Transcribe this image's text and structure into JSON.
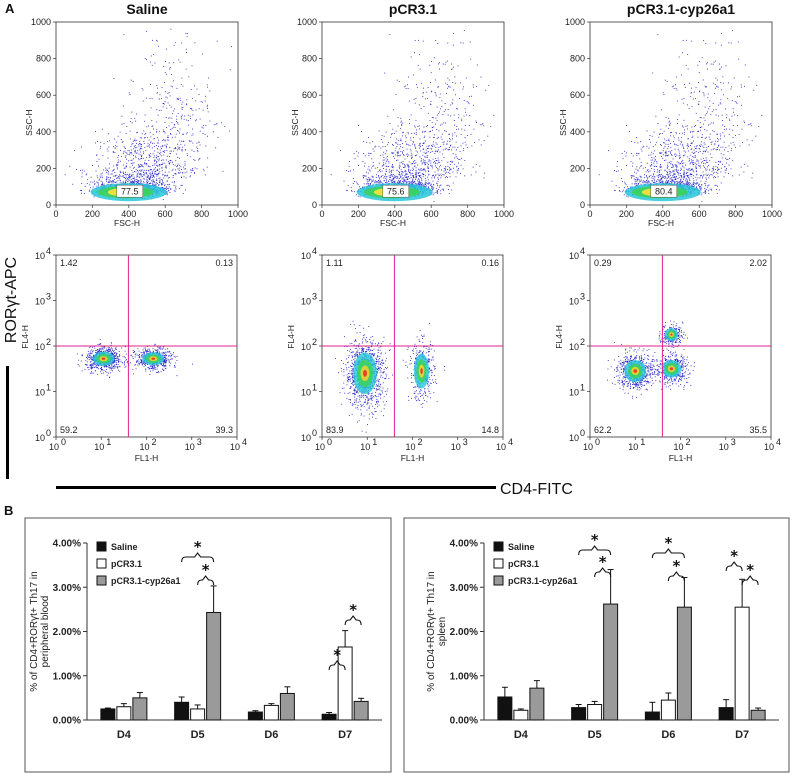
{
  "colors": {
    "dot": "#2323c8",
    "quad": "#e0208c",
    "saline": "#111111",
    "pcr": "#ffffff",
    "cyp": "#9a9a9a"
  },
  "panel_a_label": "A",
  "panel_b_label": "B",
  "scatter_titles": [
    "Saline",
    "pCR3.1",
    "pCR3.1-cyp26a1"
  ],
  "fsc_axes": {
    "xlabel": "FSC-H",
    "ylabel": "SSC-H",
    "xticks": [
      "0",
      "200",
      "400",
      "600",
      "800",
      "1000"
    ],
    "yticks": [
      "0",
      "200",
      "400",
      "600",
      "800",
      "1000"
    ]
  },
  "fl_axes": {
    "xlabel": "FL1-H",
    "ylabel": "FL4-H",
    "xticks": [
      "10",
      "10",
      "10",
      "10",
      "10"
    ],
    "xexp": [
      "0",
      "1",
      "2",
      "3",
      "4"
    ],
    "yticks": [
      "10",
      "10",
      "10",
      "10",
      "10"
    ],
    "yexp": [
      "0",
      "1",
      "2",
      "3",
      "4"
    ]
  },
  "rory_label": "RORγt-APC",
  "cd4_label": "CD4-FITC",
  "chart_data": [
    {
      "type": "scatter",
      "title": "Saline",
      "xlabel": "FSC-H",
      "ylabel": "SSC-H",
      "xlim": [
        0,
        1000
      ],
      "ylim": [
        0,
        1000
      ],
      "gate_value": "77.5"
    },
    {
      "type": "scatter",
      "title": "pCR3.1",
      "xlabel": "FSC-H",
      "ylabel": "SSC-H",
      "xlim": [
        0,
        1000
      ],
      "ylim": [
        0,
        1000
      ],
      "gate_value": "75.6"
    },
    {
      "type": "scatter",
      "title": "pCR3.1-cyp26a1",
      "xlabel": "FSC-H",
      "ylabel": "SSC-H",
      "xlim": [
        0,
        1000
      ],
      "ylim": [
        0,
        1000
      ],
      "gate_value": "80.4"
    },
    {
      "type": "scatter",
      "xlabel": "FL1-H",
      "ylabel": "FL4-H",
      "scale": "log",
      "quadrants": {
        "ul": "1.42",
        "ur": "0.13",
        "ll": "59.2",
        "lr": "39.3"
      }
    },
    {
      "type": "scatter",
      "xlabel": "FL1-H",
      "ylabel": "FL4-H",
      "scale": "log",
      "quadrants": {
        "ul": "1.11",
        "ur": "0.16",
        "ll": "83.9",
        "lr": "14.8"
      }
    },
    {
      "type": "scatter",
      "xlabel": "FL1-H",
      "ylabel": "FL4-H",
      "scale": "log",
      "quadrants": {
        "ul": "0.29",
        "ur": "2.02",
        "ll": "62.2",
        "lr": "35.5"
      }
    },
    {
      "type": "bar",
      "ylabel": "% of CD4+RORγt+ Th17 in peripheral blood",
      "ylim": [
        0,
        0.04
      ],
      "yticks": [
        "0.00%",
        "1.00%",
        "2.00%",
        "3.00%",
        "4.00%"
      ],
      "categories": [
        "D4",
        "D5",
        "D6",
        "D7"
      ],
      "series": [
        {
          "name": "Saline",
          "values": [
            0.0025,
            0.004,
            0.0018,
            0.0013
          ],
          "errors": [
            0.0002,
            0.0012,
            0.0003,
            0.0004
          ]
        },
        {
          "name": "pCR3.1",
          "values": [
            0.003,
            0.0025,
            0.0033,
            0.0165
          ],
          "errors": [
            0.0007,
            0.0009,
            0.0004,
            0.0037
          ]
        },
        {
          "name": "pCR3.1-cyp26a1",
          "values": [
            0.005,
            0.0243,
            0.006,
            0.0042
          ],
          "errors": [
            0.0012,
            0.006,
            0.0015,
            0.0007
          ]
        }
      ],
      "significance": [
        "*",
        "*",
        "*",
        "*"
      ]
    },
    {
      "type": "bar",
      "ylabel": "% of CD4+RORγt+ Th17 in spleen",
      "ylim": [
        0,
        0.04
      ],
      "yticks": [
        "0.00%",
        "1.00%",
        "2.00%",
        "3.00%",
        "4.00%"
      ],
      "categories": [
        "D4",
        "D5",
        "D6",
        "D7"
      ],
      "series": [
        {
          "name": "Saline",
          "values": [
            0.0052,
            0.0028,
            0.0018,
            0.0028
          ],
          "errors": [
            0.0022,
            0.0007,
            0.0022,
            0.0018
          ]
        },
        {
          "name": "pCR3.1",
          "values": [
            0.0022,
            0.0035,
            0.0045,
            0.0255
          ],
          "errors": [
            0.0003,
            0.0007,
            0.0016,
            0.0063
          ]
        },
        {
          "name": "pCR3.1-cyp26a1",
          "values": [
            0.0072,
            0.0262,
            0.0255,
            0.0022
          ],
          "errors": [
            0.0017,
            0.0078,
            0.0067,
            0.0005
          ]
        }
      ],
      "significance": [
        "*",
        "*",
        "*",
        "*",
        "*",
        "*"
      ]
    }
  ]
}
